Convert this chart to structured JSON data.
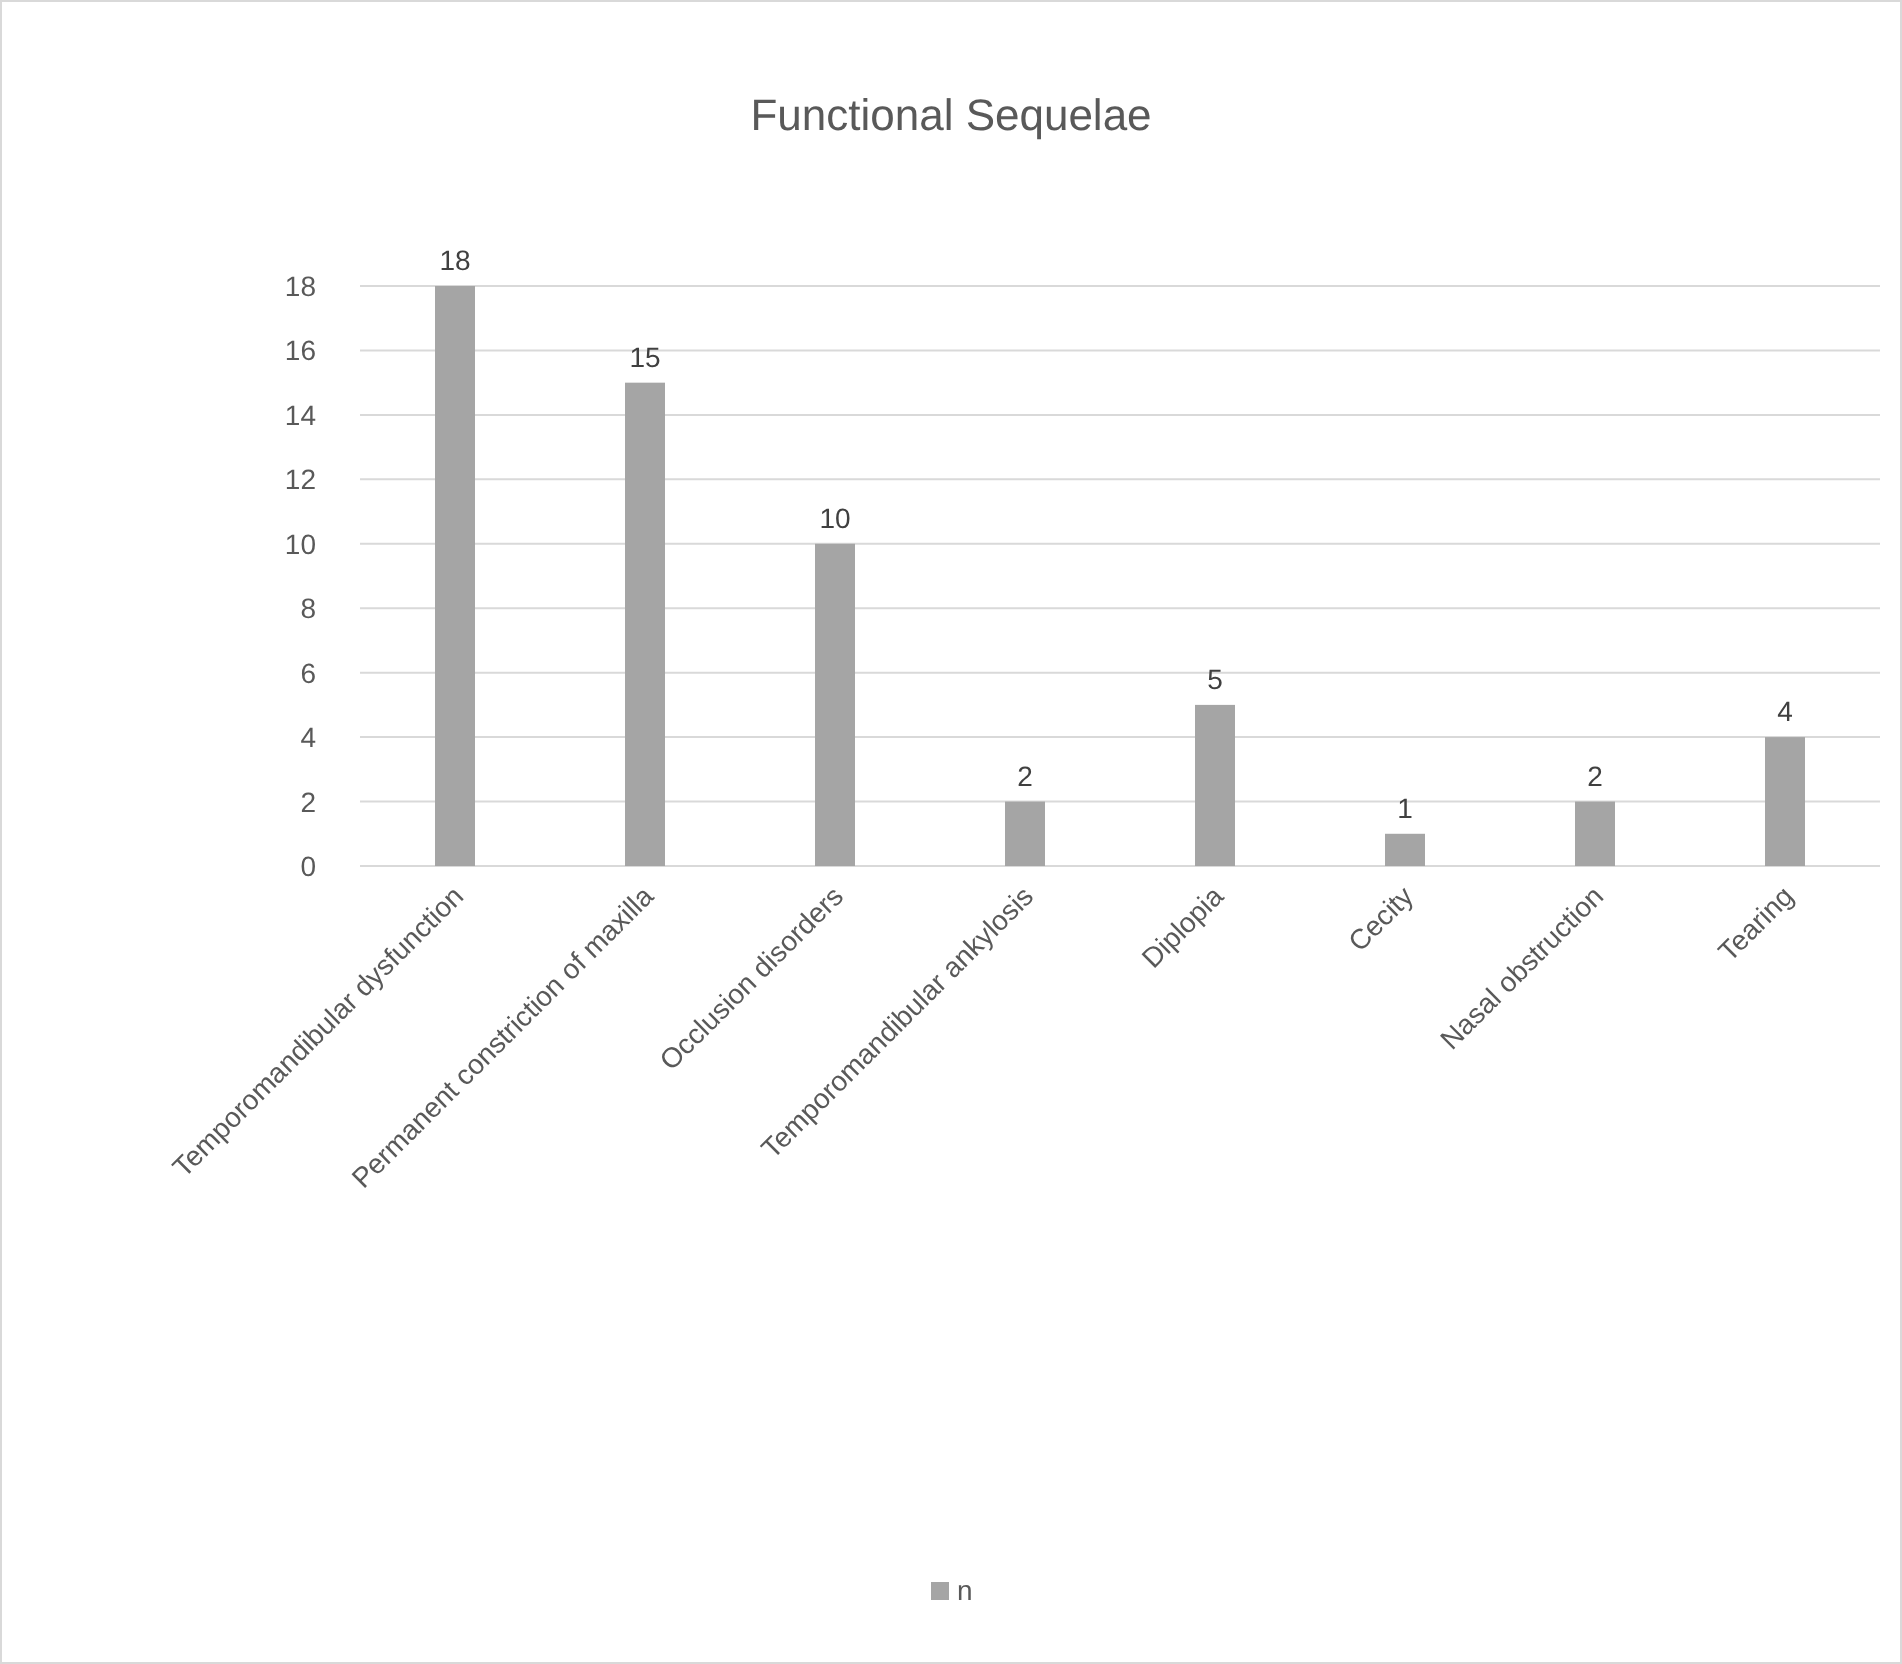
{
  "chart_data": {
    "type": "bar",
    "title": "Functional Sequelae",
    "categories": [
      "Temporomandibular dysfunction",
      "Permanent constriction of maxilla",
      "Occlusion disorders",
      "Temporomandibular ankylosis",
      "Diplopia",
      "Cecity",
      "Nasal obstruction",
      "Tearing"
    ],
    "series": [
      {
        "name": "n",
        "color": "#a5a5a5",
        "values": [
          18,
          15,
          10,
          2,
          5,
          1,
          2,
          4
        ]
      }
    ],
    "ylim": [
      0,
      18
    ],
    "yticks": [
      0,
      2,
      4,
      6,
      8,
      10,
      12,
      14,
      16,
      18
    ],
    "grid": "y",
    "legend": "bottom",
    "data_labels": true
  }
}
